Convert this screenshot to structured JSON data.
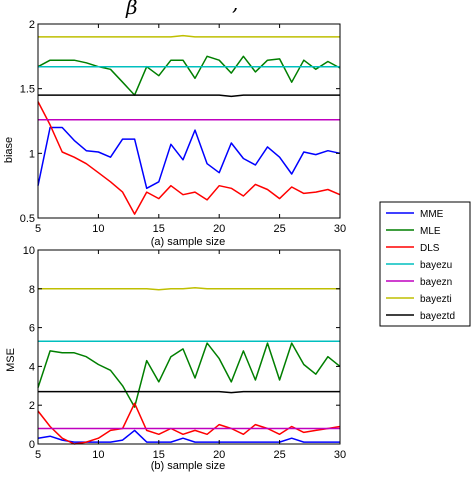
{
  "top_text": {
    "symbol": "β",
    "suffix": ","
  },
  "colors": {
    "MME": "#0000ff",
    "MLE": "#007f00",
    "DLS": "#ff0000",
    "bayezu": "#00bfbf",
    "bayezn": "#bf00bf",
    "bayezti": "#bfbf00",
    "bayeztd": "#000000"
  },
  "legend": [
    "MME",
    "MLE",
    "DLS",
    "bayezu",
    "bayezn",
    "bayezti",
    "bayeztd"
  ],
  "chart_data": [
    {
      "type": "line",
      "panel": "top",
      "ylabel": "biase",
      "xlabel": "(a) sample size",
      "xlim": [
        5,
        30
      ],
      "ylim": [
        0.5,
        2
      ],
      "xticks": [
        "5",
        "10",
        "15",
        "20",
        "25",
        "30"
      ],
      "yticks": [
        "0.5",
        "1",
        "1.5",
        "2"
      ],
      "x": [
        5,
        6,
        7,
        8,
        9,
        10,
        11,
        12,
        13,
        14,
        15,
        16,
        17,
        18,
        19,
        20,
        21,
        22,
        23,
        24,
        25,
        26,
        27,
        28,
        29,
        30
      ],
      "series": [
        {
          "name": "MME",
          "values": [
            0.75,
            1.2,
            1.2,
            1.1,
            1.02,
            1.01,
            0.97,
            1.11,
            1.11,
            0.73,
            0.78,
            1.07,
            0.95,
            1.18,
            0.92,
            0.85,
            1.08,
            0.96,
            0.91,
            1.05,
            0.97,
            0.84,
            1.01,
            0.99,
            1.02,
            1.0
          ]
        },
        {
          "name": "MLE",
          "values": [
            1.67,
            1.72,
            1.72,
            1.72,
            1.7,
            1.67,
            1.65,
            1.55,
            1.45,
            1.67,
            1.6,
            1.72,
            1.72,
            1.58,
            1.75,
            1.72,
            1.62,
            1.75,
            1.63,
            1.72,
            1.73,
            1.55,
            1.72,
            1.65,
            1.71,
            1.66
          ]
        },
        {
          "name": "DLS",
          "values": [
            1.4,
            1.22,
            1.01,
            0.97,
            0.92,
            0.85,
            0.78,
            0.7,
            0.53,
            0.7,
            0.65,
            0.75,
            0.68,
            0.7,
            0.64,
            0.75,
            0.73,
            0.67,
            0.76,
            0.72,
            0.65,
            0.74,
            0.69,
            0.7,
            0.72,
            0.68
          ]
        },
        {
          "name": "bayezu",
          "values": [
            1.67,
            1.67,
            1.67,
            1.67,
            1.67,
            1.67,
            1.67,
            1.67,
            1.67,
            1.67,
            1.67,
            1.67,
            1.67,
            1.67,
            1.67,
            1.67,
            1.67,
            1.67,
            1.67,
            1.67,
            1.67,
            1.67,
            1.67,
            1.67,
            1.67,
            1.67
          ]
        },
        {
          "name": "bayezn",
          "values": [
            1.26,
            1.26,
            1.26,
            1.26,
            1.26,
            1.26,
            1.26,
            1.26,
            1.26,
            1.26,
            1.26,
            1.26,
            1.26,
            1.26,
            1.26,
            1.26,
            1.26,
            1.26,
            1.26,
            1.26,
            1.26,
            1.26,
            1.26,
            1.26,
            1.26,
            1.26
          ]
        },
        {
          "name": "bayezti",
          "values": [
            1.9,
            1.9,
            1.9,
            1.9,
            1.9,
            1.9,
            1.9,
            1.9,
            1.9,
            1.9,
            1.9,
            1.9,
            1.91,
            1.9,
            1.9,
            1.9,
            1.9,
            1.9,
            1.9,
            1.9,
            1.9,
            1.9,
            1.9,
            1.9,
            1.9,
            1.9
          ]
        },
        {
          "name": "bayeztd",
          "values": [
            1.45,
            1.45,
            1.45,
            1.45,
            1.45,
            1.45,
            1.45,
            1.45,
            1.45,
            1.45,
            1.45,
            1.45,
            1.45,
            1.45,
            1.45,
            1.45,
            1.44,
            1.45,
            1.45,
            1.45,
            1.45,
            1.45,
            1.45,
            1.45,
            1.45,
            1.45
          ]
        }
      ]
    },
    {
      "type": "line",
      "panel": "bottom",
      "ylabel": "MSE",
      "xlabel": "(b) sample size",
      "xlim": [
        5,
        30
      ],
      "ylim": [
        0,
        10
      ],
      "xticks": [
        "5",
        "10",
        "15",
        "20",
        "25",
        "30"
      ],
      "yticks": [
        "0",
        "2",
        "4",
        "6",
        "8",
        "10"
      ],
      "x": [
        5,
        6,
        7,
        8,
        9,
        10,
        11,
        12,
        13,
        14,
        15,
        16,
        17,
        18,
        19,
        20,
        21,
        22,
        23,
        24,
        25,
        26,
        27,
        28,
        29,
        30
      ],
      "series": [
        {
          "name": "MME",
          "values": [
            0.3,
            0.4,
            0.2,
            0.1,
            0.1,
            0.1,
            0.1,
            0.2,
            0.7,
            0.1,
            0.1,
            0.1,
            0.3,
            0.1,
            0.1,
            0.1,
            0.1,
            0.1,
            0.1,
            0.1,
            0.1,
            0.3,
            0.1,
            0.1,
            0.1,
            0.1
          ]
        },
        {
          "name": "MLE",
          "values": [
            2.9,
            4.8,
            4.7,
            4.7,
            4.5,
            4.1,
            3.8,
            3.0,
            1.9,
            4.3,
            3.2,
            4.5,
            4.9,
            3.4,
            5.2,
            4.4,
            3.2,
            4.8,
            3.3,
            5.2,
            3.3,
            5.2,
            4.1,
            3.6,
            4.5,
            4.0
          ]
        },
        {
          "name": "DLS",
          "values": [
            1.7,
            0.9,
            0.3,
            0.0,
            0.1,
            0.3,
            0.7,
            0.8,
            2.1,
            0.7,
            0.5,
            0.8,
            0.5,
            0.7,
            0.5,
            1.0,
            0.8,
            0.5,
            1.0,
            0.8,
            0.5,
            0.9,
            0.6,
            0.7,
            0.8,
            0.9
          ]
        },
        {
          "name": "bayezu",
          "values": [
            5.3,
            5.3,
            5.3,
            5.3,
            5.3,
            5.3,
            5.3,
            5.3,
            5.3,
            5.3,
            5.3,
            5.3,
            5.3,
            5.3,
            5.3,
            5.3,
            5.3,
            5.3,
            5.3,
            5.3,
            5.3,
            5.3,
            5.3,
            5.3,
            5.3,
            5.3
          ]
        },
        {
          "name": "bayezn",
          "values": [
            0.8,
            0.8,
            0.8,
            0.8,
            0.8,
            0.8,
            0.8,
            0.8,
            0.8,
            0.8,
            0.8,
            0.8,
            0.8,
            0.8,
            0.8,
            0.8,
            0.8,
            0.8,
            0.8,
            0.8,
            0.8,
            0.8,
            0.8,
            0.8,
            0.8,
            0.8
          ]
        },
        {
          "name": "bayezti",
          "values": [
            8.0,
            8.0,
            8.0,
            8.0,
            8.0,
            8.0,
            8.0,
            8.0,
            8.0,
            8.0,
            7.95,
            8.0,
            8.0,
            8.05,
            8.0,
            8.0,
            8.0,
            8.0,
            8.0,
            8.0,
            8.0,
            8.0,
            8.0,
            8.0,
            8.0,
            8.0
          ]
        },
        {
          "name": "bayeztd",
          "values": [
            2.7,
            2.7,
            2.7,
            2.7,
            2.7,
            2.7,
            2.7,
            2.7,
            2.7,
            2.7,
            2.7,
            2.7,
            2.7,
            2.7,
            2.7,
            2.7,
            2.65,
            2.7,
            2.7,
            2.7,
            2.7,
            2.7,
            2.7,
            2.7,
            2.7,
            2.7
          ]
        }
      ]
    }
  ]
}
